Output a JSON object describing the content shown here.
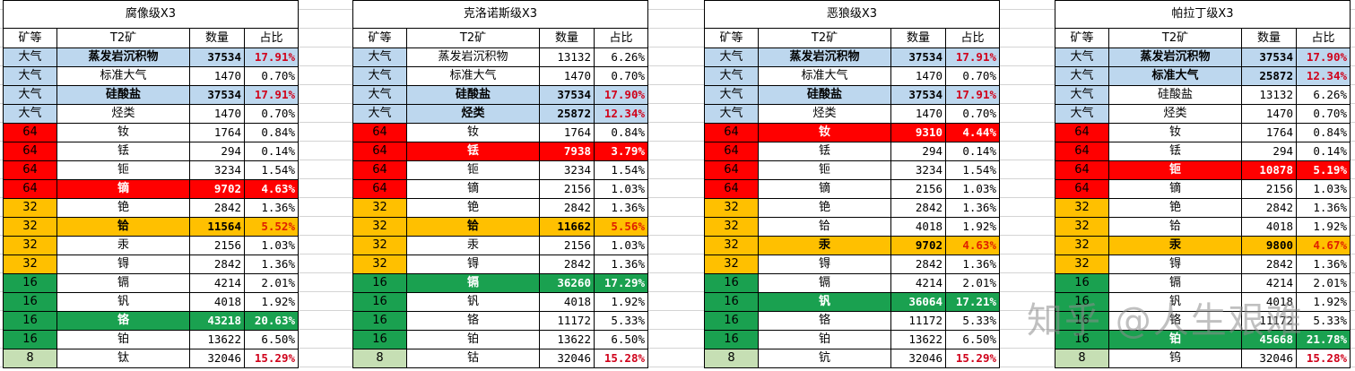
{
  "headers": {
    "grade": "矿等",
    "ore": "T2矿",
    "qty": "数量",
    "pct": "占比"
  },
  "watermark": "知乎 @人生艰难",
  "tables": [
    {
      "title": "腐像级X3",
      "rows": [
        {
          "grade": "大气",
          "ore": "蒸发岩沉积物",
          "qty": "37534",
          "pct": "17.91%",
          "hl": "atm"
        },
        {
          "grade": "大气",
          "ore": "标准大气",
          "qty": "1470",
          "pct": "0.70%",
          "hl": ""
        },
        {
          "grade": "大气",
          "ore": "硅酸盐",
          "qty": "37534",
          "pct": "17.91%",
          "hl": "atm"
        },
        {
          "grade": "大气",
          "ore": "烃类",
          "qty": "1470",
          "pct": "0.70%",
          "hl": ""
        },
        {
          "grade": "64",
          "ore": "钕",
          "qty": "1764",
          "pct": "0.84%",
          "hl": ""
        },
        {
          "grade": "64",
          "ore": "铥",
          "qty": "294",
          "pct": "0.14%",
          "hl": ""
        },
        {
          "grade": "64",
          "ore": "钷",
          "qty": "3234",
          "pct": "1.54%",
          "hl": ""
        },
        {
          "grade": "64",
          "ore": "镝",
          "qty": "9702",
          "pct": "4.63%",
          "hl": "64"
        },
        {
          "grade": "32",
          "ore": "铯",
          "qty": "2842",
          "pct": "1.36%",
          "hl": ""
        },
        {
          "grade": "32",
          "ore": "铪",
          "qty": "11564",
          "pct": "5.52%",
          "hl": "32"
        },
        {
          "grade": "32",
          "ore": "汞",
          "qty": "2156",
          "pct": "1.03%",
          "hl": ""
        },
        {
          "grade": "32",
          "ore": "锝",
          "qty": "2842",
          "pct": "1.36%",
          "hl": ""
        },
        {
          "grade": "16",
          "ore": "镉",
          "qty": "4214",
          "pct": "2.01%",
          "hl": ""
        },
        {
          "grade": "16",
          "ore": "钒",
          "qty": "4018",
          "pct": "1.92%",
          "hl": ""
        },
        {
          "grade": "16",
          "ore": "铬",
          "qty": "43218",
          "pct": "20.63%",
          "hl": "16"
        },
        {
          "grade": "16",
          "ore": "铂",
          "qty": "13622",
          "pct": "6.50%",
          "hl": ""
        },
        {
          "grade": "8",
          "ore": "钛",
          "qty": "32046",
          "pct": "15.29%",
          "hl": "red"
        }
      ]
    },
    {
      "title": "克洛诺斯级X3",
      "rows": [
        {
          "grade": "大气",
          "ore": "蒸发岩沉积物",
          "qty": "13132",
          "pct": "6.26%",
          "hl": ""
        },
        {
          "grade": "大气",
          "ore": "标准大气",
          "qty": "1470",
          "pct": "0.70%",
          "hl": ""
        },
        {
          "grade": "大气",
          "ore": "硅酸盐",
          "qty": "37534",
          "pct": "17.90%",
          "hl": "atm"
        },
        {
          "grade": "大气",
          "ore": "烃类",
          "qty": "25872",
          "pct": "12.34%",
          "hl": "atm"
        },
        {
          "grade": "64",
          "ore": "钕",
          "qty": "1764",
          "pct": "0.84%",
          "hl": ""
        },
        {
          "grade": "64",
          "ore": "铥",
          "qty": "7938",
          "pct": "3.79%",
          "hl": "64"
        },
        {
          "grade": "64",
          "ore": "钷",
          "qty": "3234",
          "pct": "1.54%",
          "hl": ""
        },
        {
          "grade": "64",
          "ore": "镝",
          "qty": "2156",
          "pct": "1.03%",
          "hl": ""
        },
        {
          "grade": "32",
          "ore": "铯",
          "qty": "2842",
          "pct": "1.36%",
          "hl": ""
        },
        {
          "grade": "32",
          "ore": "铪",
          "qty": "11662",
          "pct": "5.56%",
          "hl": "32"
        },
        {
          "grade": "32",
          "ore": "汞",
          "qty": "2156",
          "pct": "1.03%",
          "hl": ""
        },
        {
          "grade": "32",
          "ore": "锝",
          "qty": "2842",
          "pct": "1.36%",
          "hl": ""
        },
        {
          "grade": "16",
          "ore": "镉",
          "qty": "36260",
          "pct": "17.29%",
          "hl": "16"
        },
        {
          "grade": "16",
          "ore": "钒",
          "qty": "4018",
          "pct": "1.92%",
          "hl": ""
        },
        {
          "grade": "16",
          "ore": "铬",
          "qty": "11172",
          "pct": "5.33%",
          "hl": ""
        },
        {
          "grade": "16",
          "ore": "铂",
          "qty": "13622",
          "pct": "6.50%",
          "hl": ""
        },
        {
          "grade": "8",
          "ore": "钴",
          "qty": "32046",
          "pct": "15.28%",
          "hl": "red"
        }
      ]
    },
    {
      "title": "恶狼级X3",
      "rows": [
        {
          "grade": "大气",
          "ore": "蒸发岩沉积物",
          "qty": "37534",
          "pct": "17.91%",
          "hl": "atm"
        },
        {
          "grade": "大气",
          "ore": "标准大气",
          "qty": "1470",
          "pct": "0.70%",
          "hl": ""
        },
        {
          "grade": "大气",
          "ore": "硅酸盐",
          "qty": "37534",
          "pct": "17.91%",
          "hl": "atm"
        },
        {
          "grade": "大气",
          "ore": "烃类",
          "qty": "1470",
          "pct": "0.70%",
          "hl": ""
        },
        {
          "grade": "64",
          "ore": "钕",
          "qty": "9310",
          "pct": "4.44%",
          "hl": "64"
        },
        {
          "grade": "64",
          "ore": "铥",
          "qty": "294",
          "pct": "0.14%",
          "hl": ""
        },
        {
          "grade": "64",
          "ore": "钷",
          "qty": "3234",
          "pct": "1.54%",
          "hl": ""
        },
        {
          "grade": "64",
          "ore": "镝",
          "qty": "2156",
          "pct": "1.03%",
          "hl": ""
        },
        {
          "grade": "32",
          "ore": "铯",
          "qty": "2842",
          "pct": "1.36%",
          "hl": ""
        },
        {
          "grade": "32",
          "ore": "铪",
          "qty": "4018",
          "pct": "1.92%",
          "hl": ""
        },
        {
          "grade": "32",
          "ore": "汞",
          "qty": "9702",
          "pct": "4.63%",
          "hl": "32"
        },
        {
          "grade": "32",
          "ore": "锝",
          "qty": "2842",
          "pct": "1.36%",
          "hl": ""
        },
        {
          "grade": "16",
          "ore": "镉",
          "qty": "4214",
          "pct": "2.01%",
          "hl": ""
        },
        {
          "grade": "16",
          "ore": "钒",
          "qty": "36064",
          "pct": "17.21%",
          "hl": "16"
        },
        {
          "grade": "16",
          "ore": "铬",
          "qty": "11172",
          "pct": "5.33%",
          "hl": ""
        },
        {
          "grade": "16",
          "ore": "铂",
          "qty": "13622",
          "pct": "6.50%",
          "hl": ""
        },
        {
          "grade": "8",
          "ore": "钪",
          "qty": "32046",
          "pct": "15.29%",
          "hl": "red"
        }
      ]
    },
    {
      "title": "帕拉丁级X3",
      "rows": [
        {
          "grade": "大气",
          "ore": "蒸发岩沉积物",
          "qty": "37534",
          "pct": "17.90%",
          "hl": "atm"
        },
        {
          "grade": "大气",
          "ore": "标准大气",
          "qty": "25872",
          "pct": "12.34%",
          "hl": "atm"
        },
        {
          "grade": "大气",
          "ore": "硅酸盐",
          "qty": "13132",
          "pct": "6.26%",
          "hl": ""
        },
        {
          "grade": "大气",
          "ore": "烃类",
          "qty": "1470",
          "pct": "0.70%",
          "hl": ""
        },
        {
          "grade": "64",
          "ore": "钕",
          "qty": "1764",
          "pct": "0.84%",
          "hl": ""
        },
        {
          "grade": "64",
          "ore": "铥",
          "qty": "294",
          "pct": "0.14%",
          "hl": ""
        },
        {
          "grade": "64",
          "ore": "钷",
          "qty": "10878",
          "pct": "5.19%",
          "hl": "64"
        },
        {
          "grade": "64",
          "ore": "镝",
          "qty": "2156",
          "pct": "1.03%",
          "hl": ""
        },
        {
          "grade": "32",
          "ore": "铯",
          "qty": "2842",
          "pct": "1.36%",
          "hl": ""
        },
        {
          "grade": "32",
          "ore": "铪",
          "qty": "4018",
          "pct": "1.92%",
          "hl": ""
        },
        {
          "grade": "32",
          "ore": "汞",
          "qty": "9800",
          "pct": "4.67%",
          "hl": "32"
        },
        {
          "grade": "32",
          "ore": "锝",
          "qty": "2842",
          "pct": "1.36%",
          "hl": ""
        },
        {
          "grade": "16",
          "ore": "镉",
          "qty": "4214",
          "pct": "2.01%",
          "hl": ""
        },
        {
          "grade": "16",
          "ore": "钒",
          "qty": "4018",
          "pct": "1.92%",
          "hl": ""
        },
        {
          "grade": "16",
          "ore": "铬",
          "qty": "11172",
          "pct": "5.33%",
          "hl": ""
        },
        {
          "grade": "16",
          "ore": "铂",
          "qty": "45668",
          "pct": "21.78%",
          "hl": "16"
        },
        {
          "grade": "8",
          "ore": "钨",
          "qty": "32046",
          "pct": "15.28%",
          "hl": "red"
        }
      ]
    }
  ]
}
